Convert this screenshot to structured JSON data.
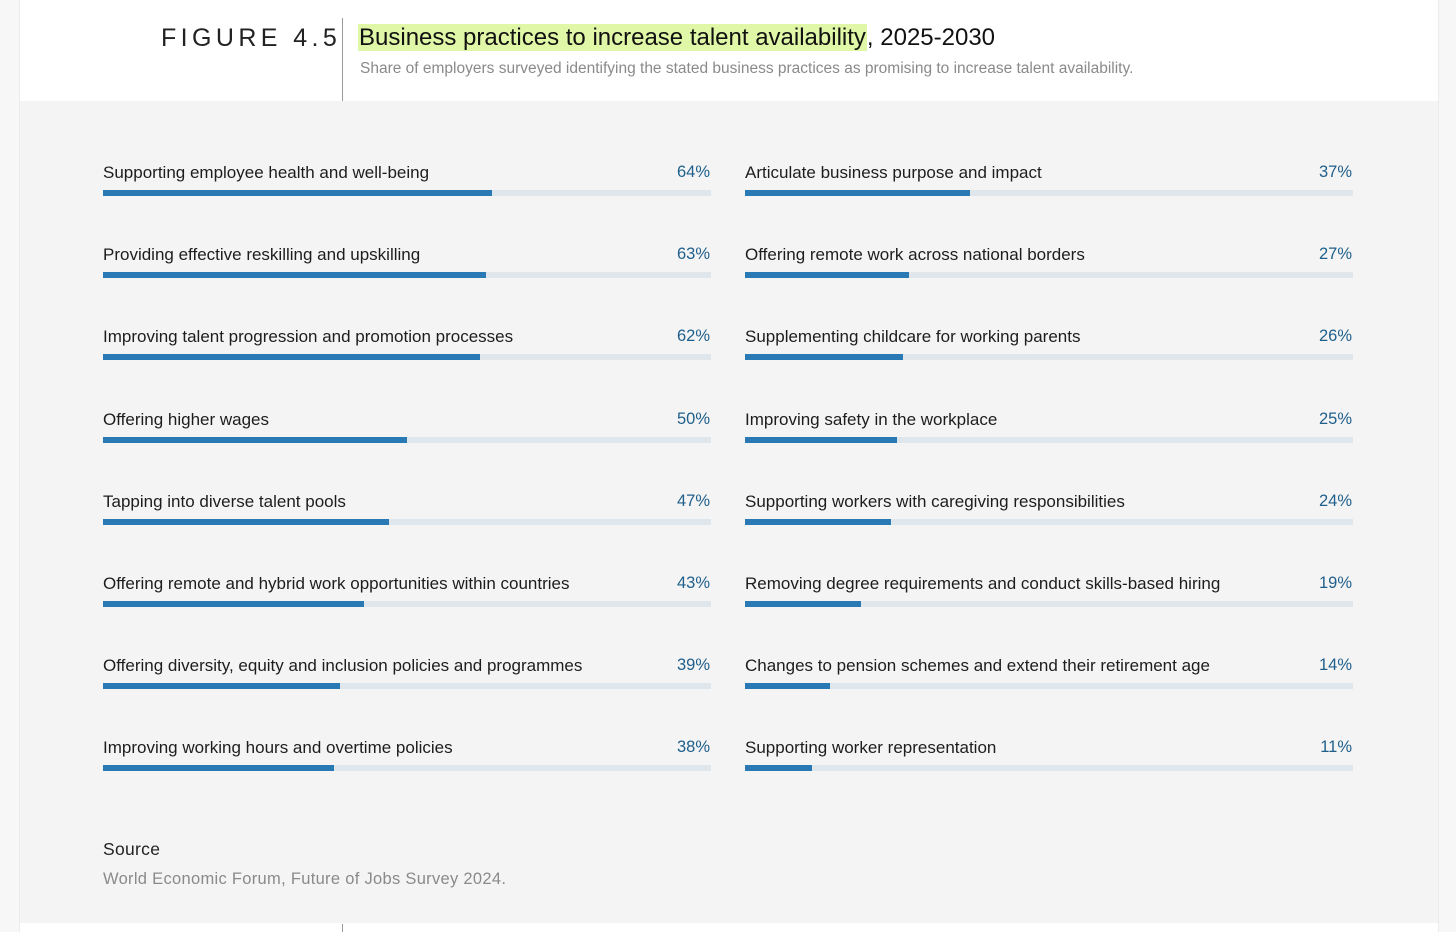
{
  "figure": {
    "label": "FIGURE 4.5",
    "title_highlight": "Business practices to increase talent availability",
    "title_rest": ", 2025-2030",
    "subtitle": "Share of employers surveyed identifying the stated business practices as promising to increase talent availability."
  },
  "chart_data": {
    "type": "bar",
    "orientation": "horizontal",
    "title": "Business practices to increase talent availability, 2025-2030",
    "ylim": [
      0,
      100
    ],
    "categories": [
      "Supporting employee health and well-being",
      "Providing effective reskilling and upskilling",
      "Improving talent progression and promotion processes",
      "Offering higher wages",
      "Tapping into diverse talent pools",
      "Offering remote and hybrid work opportunities within countries",
      "Offering diversity, equity and inclusion policies and programmes",
      "Improving working hours and overtime policies",
      "Articulate business purpose and impact",
      "Offering remote work across national borders",
      "Supplementing childcare for working parents",
      "Improving safety in the workplace",
      "Supporting workers with caregiving responsibilities",
      "Removing degree requirements and conduct skills-based hiring",
      "Changes to pension schemes and extend their retirement age",
      "Supporting worker representation"
    ],
    "values": [
      64,
      63,
      62,
      50,
      47,
      43,
      39,
      38,
      37,
      27,
      26,
      25,
      24,
      19,
      14,
      11
    ],
    "value_labels": [
      "64%",
      "63%",
      "62%",
      "50%",
      "47%",
      "43%",
      "39%",
      "38%",
      "37%",
      "27%",
      "26%",
      "25%",
      "24%",
      "19%",
      "14%",
      "11%"
    ],
    "colors": {
      "bar": "#2979b5",
      "track": "#dfe6ec",
      "value_text": "#1f5f8b"
    }
  },
  "source": {
    "heading": "Source",
    "text": "World Economic Forum, Future of Jobs Survey 2024."
  }
}
